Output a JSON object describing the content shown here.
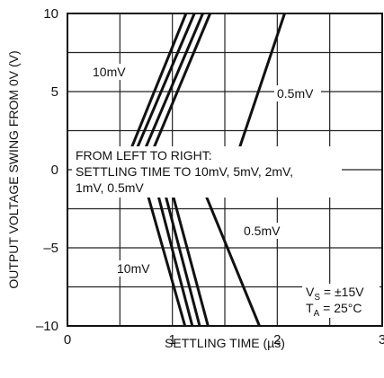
{
  "chart_data": {
    "type": "line",
    "xlabel": "SETTLING TIME (µs)",
    "ylabel": "OUTPUT VOLTAGE SWING FROM 0V (V)",
    "xlim": [
      0,
      3
    ],
    "ylim": [
      -10,
      10
    ],
    "xticks": [
      0,
      1,
      2,
      3
    ],
    "xtick_labels": [
      "0",
      "1",
      "2",
      "3"
    ],
    "yticks": [
      -10,
      -5,
      0,
      5,
      10
    ],
    "ytick_labels": [
      "–10",
      "–5",
      "0",
      "5",
      "10"
    ],
    "grid": true,
    "series": [
      {
        "name": "10mV",
        "segments": [
          [
            [
              0.52,
              -0.1
            ],
            [
              1.13,
              10
            ]
          ],
          [
            [
              0.74,
              -1.0
            ],
            [
              1.12,
              -10
            ]
          ]
        ]
      },
      {
        "name": "5mV",
        "segments": [
          [
            [
              0.57,
              -0.1
            ],
            [
              1.21,
              10
            ]
          ],
          [
            [
              0.84,
              -1.0
            ],
            [
              1.19,
              -10
            ]
          ]
        ]
      },
      {
        "name": "2mV",
        "segments": [
          [
            [
              0.65,
              -0.1
            ],
            [
              1.29,
              10
            ]
          ],
          [
            [
              0.91,
              -1.0
            ],
            [
              1.26,
              -10
            ]
          ]
        ]
      },
      {
        "name": "1mV",
        "segments": [
          [
            [
              0.73,
              -0.1
            ],
            [
              1.36,
              10
            ]
          ],
          [
            [
              0.98,
              -1.0
            ],
            [
              1.34,
              -10
            ]
          ]
        ]
      },
      {
        "name": "0.5mV",
        "segments": [
          [
            [
              1.57,
              0.0
            ],
            [
              2.07,
              10
            ]
          ],
          [
            [
              1.28,
              -1.0
            ],
            [
              1.83,
              -10
            ]
          ]
        ]
      }
    ],
    "annotations": {
      "upper_left": "10mV",
      "upper_right": "0.5mV",
      "lower_right": "0.5mV",
      "lower_left": "10mV",
      "legend_text_line1": "FROM LEFT TO RIGHT:",
      "legend_text_line2": "SETTLING TIME TO 10mV, 5mV, 2mV,",
      "legend_text_line3": "1mV, 0.5mV",
      "conditions_vs_main": "V",
      "conditions_vs_sub": "S",
      "conditions_vs_value": " = ±15V",
      "conditions_ta_main": "T",
      "conditions_ta_sub": "A",
      "conditions_ta_value": " = 25°C"
    }
  }
}
